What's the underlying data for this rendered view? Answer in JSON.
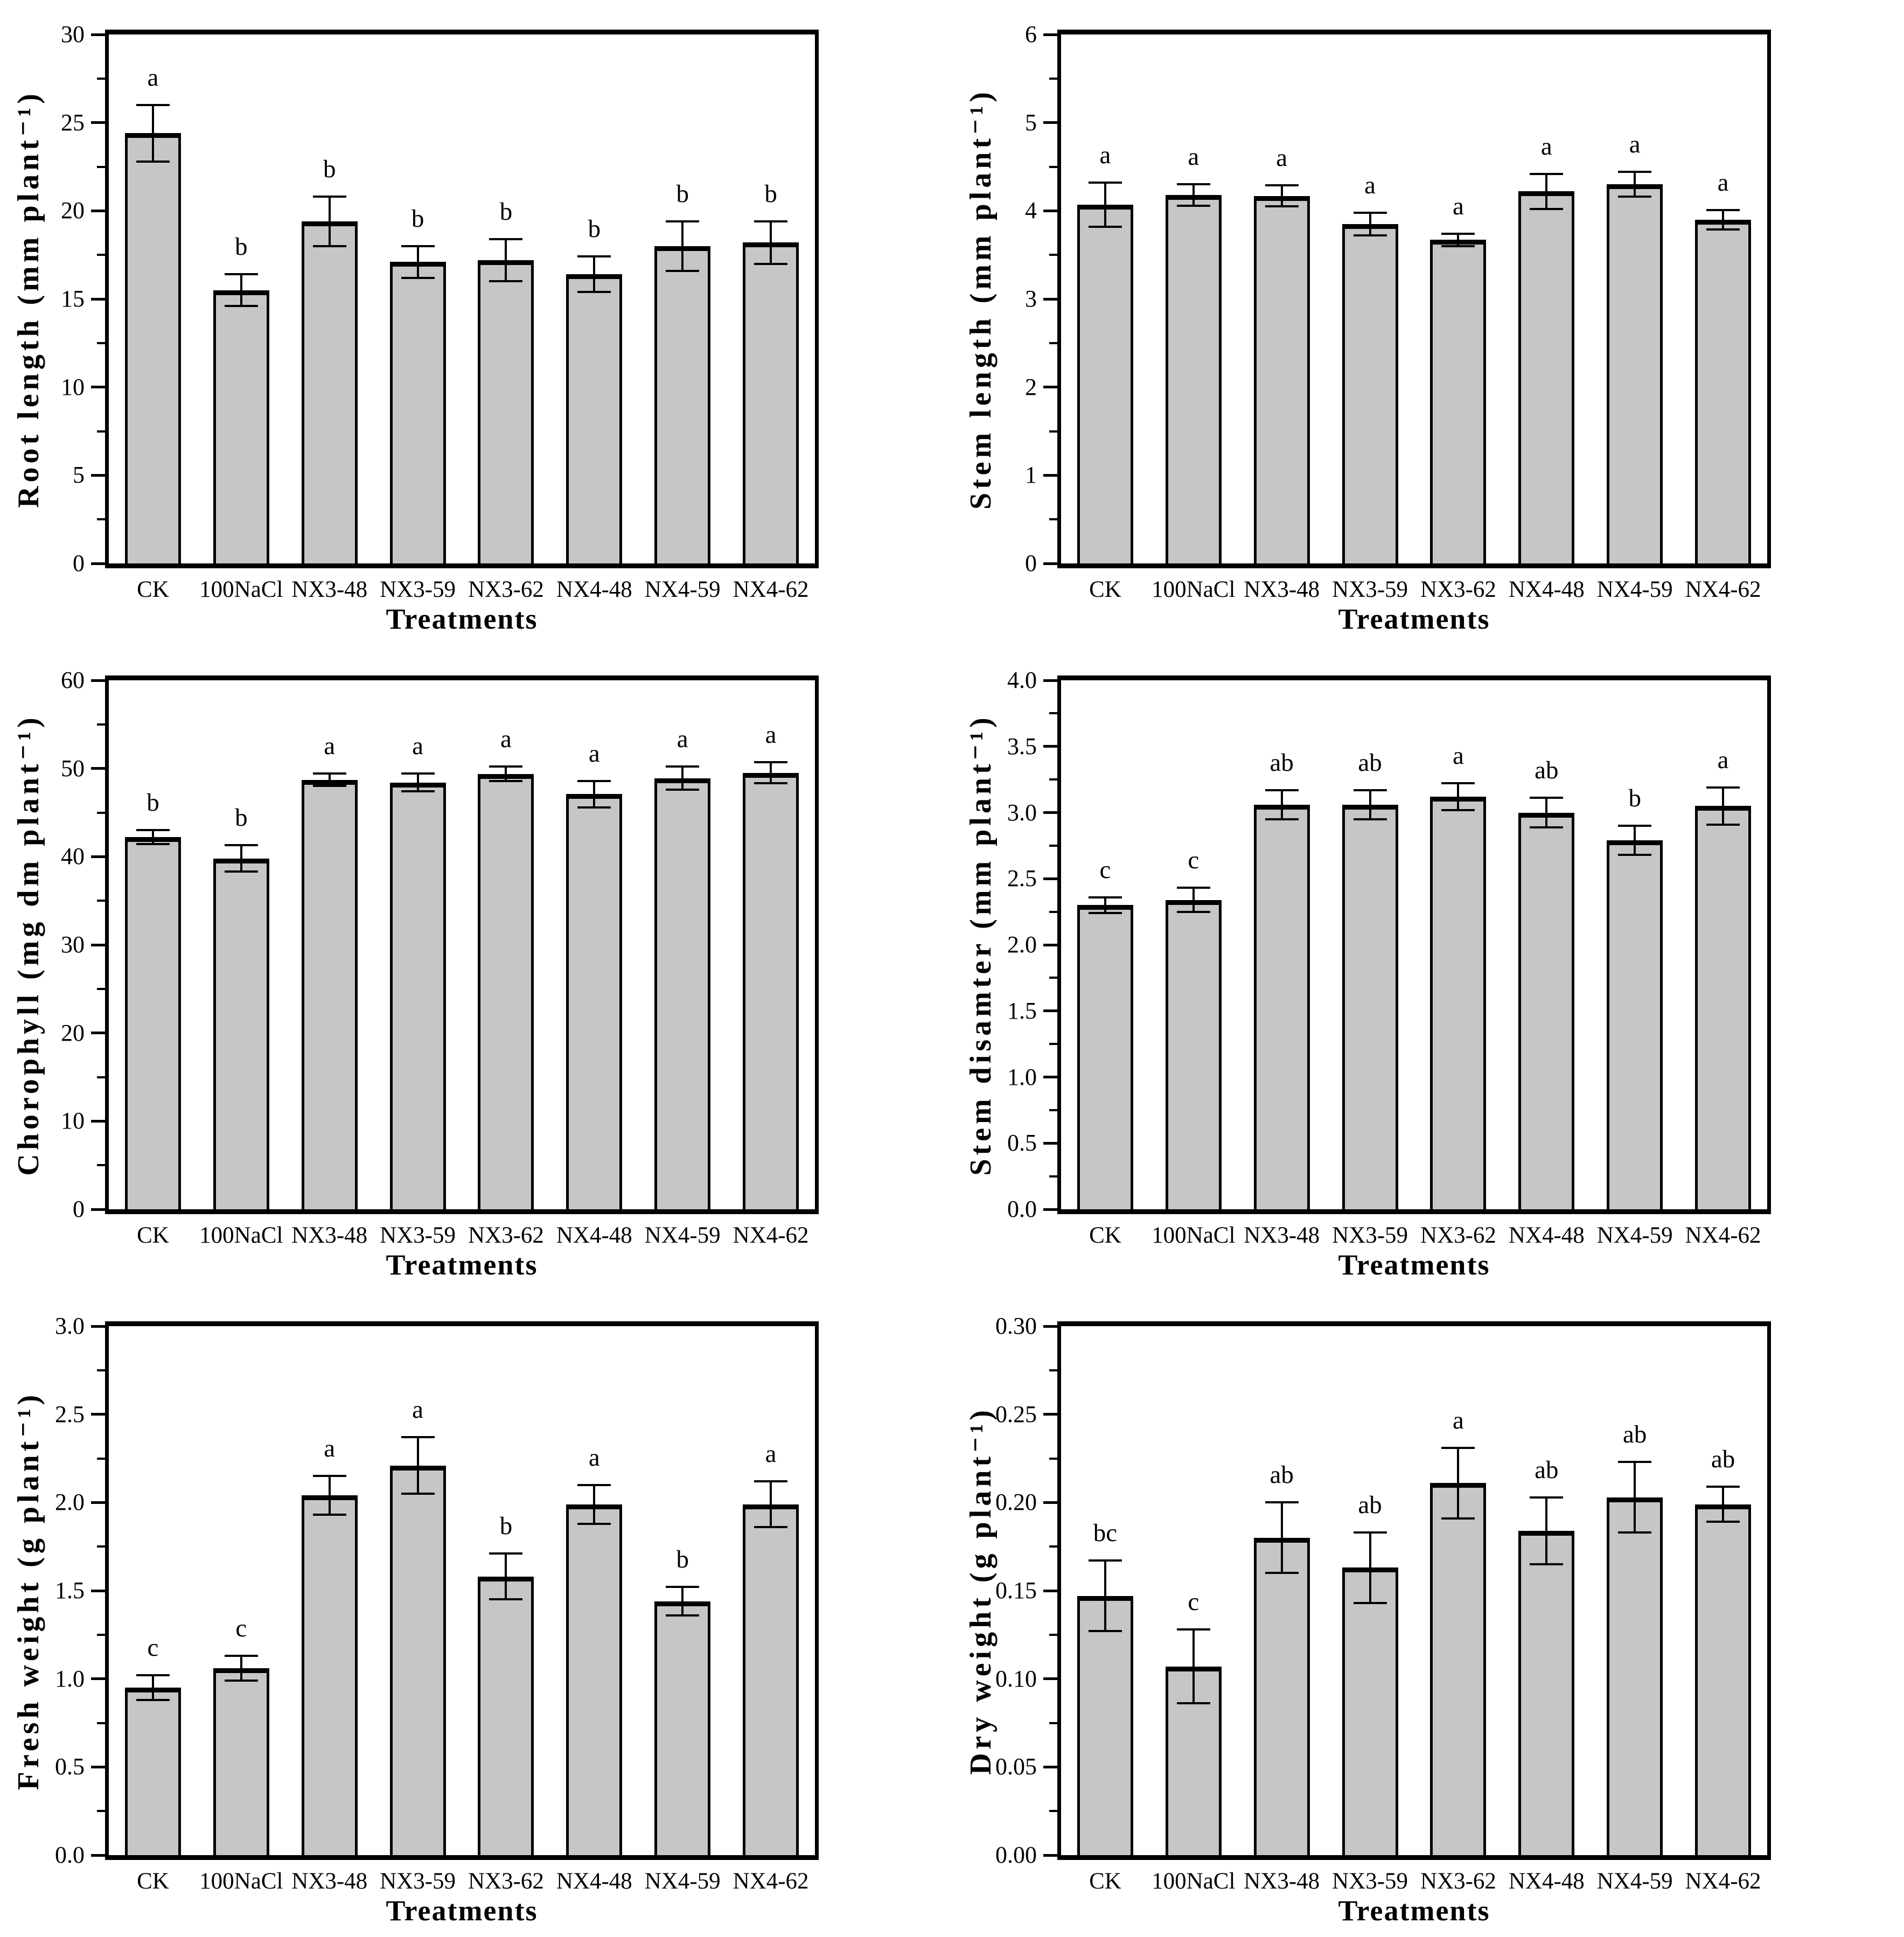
{
  "figure": {
    "x_axis_label": "Treatments",
    "categories": [
      "CK",
      "100NaCl",
      "NX3-48",
      "NX3-59",
      "NX3-62",
      "NX4-48",
      "NX4-59",
      "NX4-62"
    ],
    "bar_fill_color": "#c6c6c6",
    "bar_edge_color": "#000000",
    "error_bar_color": "#000000"
  },
  "chart_data": [
    {
      "type": "bar",
      "panel": "root-length",
      "ylabel": "Root length (mm plant⁻¹)",
      "xlabel": "Treatments",
      "ylim": [
        0,
        30
      ],
      "yticks": [
        "0",
        "5",
        "10",
        "15",
        "20",
        "25",
        "30"
      ],
      "ytick_values": [
        0,
        5,
        10,
        15,
        20,
        25,
        30
      ],
      "minor_step": 2.5,
      "grid": "off",
      "categories": [
        "CK",
        "100NaCl",
        "NX3-48",
        "NX3-59",
        "NX3-62",
        "NX4-48",
        "NX4-59",
        "NX4-62"
      ],
      "values": [
        24.4,
        15.5,
        19.4,
        17.1,
        17.2,
        16.4,
        18.0,
        18.2
      ],
      "errors": [
        1.6,
        0.9,
        1.4,
        0.9,
        1.2,
        1.0,
        1.4,
        1.2
      ],
      "letters": [
        "a",
        "b",
        "b",
        "b",
        "b",
        "b",
        "b",
        "b"
      ]
    },
    {
      "type": "bar",
      "panel": "stem-length",
      "ylabel": "Stem length (mm plant⁻¹)",
      "xlabel": "Treatments",
      "ylim": [
        0,
        6
      ],
      "yticks": [
        "0",
        "1",
        "2",
        "3",
        "4",
        "5",
        "6"
      ],
      "ytick_values": [
        0,
        1,
        2,
        3,
        4,
        5,
        6
      ],
      "minor_step": 0.5,
      "grid": "off",
      "categories": [
        "CK",
        "100NaCl",
        "NX3-48",
        "NX3-59",
        "NX3-62",
        "NX4-48",
        "NX4-59",
        "NX4-62"
      ],
      "values": [
        4.07,
        4.18,
        4.17,
        3.85,
        3.67,
        4.22,
        4.3,
        3.9
      ],
      "errors": [
        0.25,
        0.12,
        0.12,
        0.13,
        0.07,
        0.2,
        0.14,
        0.11
      ],
      "letters": [
        "a",
        "a",
        "a",
        "a",
        "a",
        "a",
        "a",
        "a"
      ]
    },
    {
      "type": "bar",
      "panel": "chlorophyll",
      "ylabel": "Chorophyll (mg dm plant⁻¹)",
      "xlabel": "Treatments",
      "ylim": [
        0,
        60
      ],
      "yticks": [
        "0",
        "10",
        "20",
        "30",
        "40",
        "50",
        "60"
      ],
      "ytick_values": [
        0,
        10,
        20,
        30,
        40,
        50,
        60
      ],
      "minor_step": 5,
      "grid": "off",
      "categories": [
        "CK",
        "100NaCl",
        "NX3-48",
        "NX3-59",
        "NX3-62",
        "NX4-48",
        "NX4-59",
        "NX4-62"
      ],
      "values": [
        42.2,
        39.8,
        48.7,
        48.4,
        49.4,
        47.1,
        48.9,
        49.5
      ],
      "errors": [
        0.8,
        1.5,
        0.7,
        1.0,
        0.8,
        1.5,
        1.3,
        1.2
      ],
      "letters": [
        "b",
        "b",
        "a",
        "a",
        "a",
        "a",
        "a",
        "a"
      ]
    },
    {
      "type": "bar",
      "panel": "stem-diameter",
      "ylabel": "Stem disamter (mm plant⁻¹)",
      "xlabel": "Treatments",
      "ylim": [
        0,
        4
      ],
      "yticks": [
        "0.0",
        "0.5",
        "1.0",
        "1.5",
        "2.0",
        "2.5",
        "3.0",
        "3.5",
        "4.0"
      ],
      "ytick_values": [
        0,
        0.5,
        1.0,
        1.5,
        2.0,
        2.5,
        3.0,
        3.5,
        4.0
      ],
      "minor_step": 0.25,
      "grid": "off",
      "categories": [
        "CK",
        "100NaCl",
        "NX3-48",
        "NX3-59",
        "NX3-62",
        "NX4-48",
        "NX4-59",
        "NX4-62"
      ],
      "values": [
        2.3,
        2.34,
        3.06,
        3.06,
        3.12,
        3.0,
        2.79,
        3.05
      ],
      "errors": [
        0.06,
        0.09,
        0.11,
        0.11,
        0.1,
        0.11,
        0.11,
        0.14
      ],
      "letters": [
        "c",
        "c",
        "ab",
        "ab",
        "a",
        "ab",
        "b",
        "a"
      ]
    },
    {
      "type": "bar",
      "panel": "fresh-weight",
      "ylabel": "Fresh weight (g plant⁻¹)",
      "xlabel": "Treatments",
      "ylim": [
        0,
        3
      ],
      "yticks": [
        "0.0",
        "0.5",
        "1.0",
        "1.5",
        "2.0",
        "2.5",
        "3.0"
      ],
      "ytick_values": [
        0,
        0.5,
        1.0,
        1.5,
        2.0,
        2.5,
        3.0
      ],
      "minor_step": 0.25,
      "grid": "off",
      "categories": [
        "CK",
        "100NaCl",
        "NX3-48",
        "NX3-59",
        "NX3-62",
        "NX4-48",
        "NX4-59",
        "NX4-62"
      ],
      "values": [
        0.95,
        1.06,
        2.04,
        2.21,
        1.58,
        1.99,
        1.44,
        1.99
      ],
      "errors": [
        0.07,
        0.07,
        0.11,
        0.16,
        0.13,
        0.11,
        0.08,
        0.13
      ],
      "letters": [
        "c",
        "c",
        "a",
        "a",
        "b",
        "a",
        "b",
        "a"
      ]
    },
    {
      "type": "bar",
      "panel": "dry-weight",
      "ylabel": "Dry weight (g plant⁻¹)",
      "xlabel": "Treatments",
      "ylim": [
        0,
        0.3
      ],
      "yticks": [
        "0.00",
        "0.05",
        "0.10",
        "0.15",
        "0.20",
        "0.25",
        "0.30"
      ],
      "ytick_values": [
        0,
        0.05,
        0.1,
        0.15,
        0.2,
        0.25,
        0.3
      ],
      "minor_step": 0.025,
      "grid": "off",
      "categories": [
        "CK",
        "100NaCl",
        "NX3-48",
        "NX3-59",
        "NX3-62",
        "NX4-48",
        "NX4-59",
        "NX4-62"
      ],
      "values": [
        0.147,
        0.107,
        0.18,
        0.163,
        0.211,
        0.184,
        0.203,
        0.199
      ],
      "errors": [
        0.02,
        0.021,
        0.02,
        0.02,
        0.02,
        0.019,
        0.02,
        0.01
      ],
      "letters": [
        "bc",
        "c",
        "ab",
        "ab",
        "a",
        "ab",
        "ab",
        "ab"
      ]
    }
  ]
}
